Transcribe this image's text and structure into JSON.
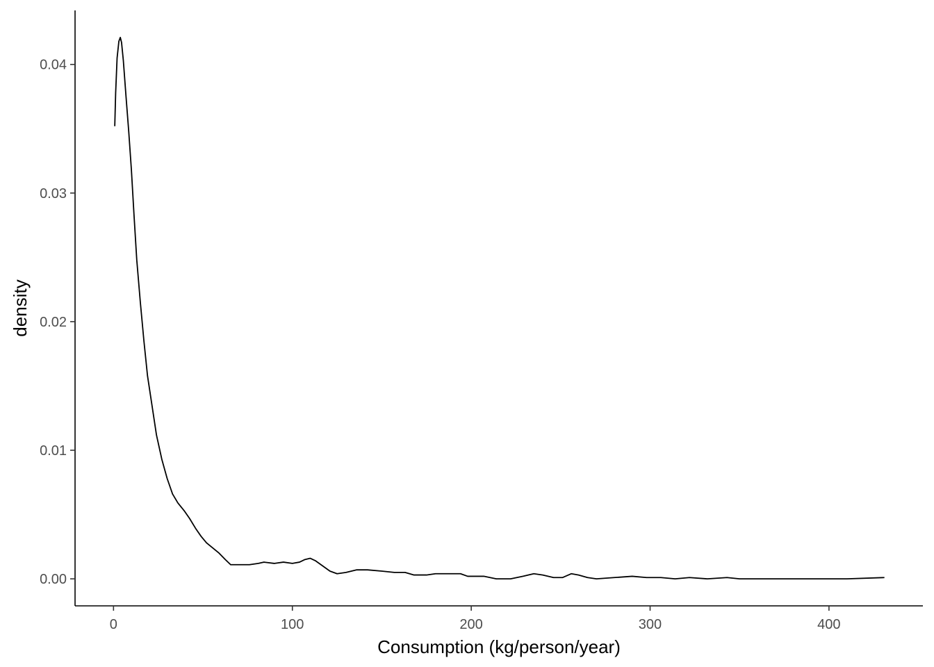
{
  "chart_data": {
    "type": "line",
    "title": "",
    "xlabel": "Consumption (kg/person/year)",
    "ylabel": "density",
    "xlim": [
      -21.5,
      452.5
    ],
    "ylim": [
      -0.0021,
      0.0442
    ],
    "x_ticks": [
      0,
      100,
      200,
      300,
      400
    ],
    "y_ticks": [
      0.0,
      0.01,
      0.02,
      0.03,
      0.04
    ],
    "x_tick_labels": [
      "0",
      "100",
      "200",
      "300",
      "400"
    ],
    "y_tick_labels": [
      "0.00",
      "0.01",
      "0.02",
      "0.03",
      "0.04"
    ],
    "grid": false,
    "legend": "none",
    "line_color": "#000000",
    "series": [
      {
        "values": [
          [
            0.7,
            0.0352
          ],
          [
            1.2,
            0.0378
          ],
          [
            2.0,
            0.0405
          ],
          [
            3.0,
            0.0418
          ],
          [
            3.8,
            0.0421
          ],
          [
            4.5,
            0.0417
          ],
          [
            5.5,
            0.0403
          ],
          [
            7.0,
            0.0375
          ],
          [
            8.5,
            0.0348
          ],
          [
            10.0,
            0.0318
          ],
          [
            11.5,
            0.0282
          ],
          [
            13.0,
            0.0248
          ],
          [
            15.0,
            0.0215
          ],
          [
            17.0,
            0.0185
          ],
          [
            19.0,
            0.0158
          ],
          [
            21.5,
            0.0135
          ],
          [
            24.0,
            0.0112
          ],
          [
            27.0,
            0.0093
          ],
          [
            30.0,
            0.0078
          ],
          [
            33.0,
            0.0066
          ],
          [
            36.0,
            0.0059
          ],
          [
            39.5,
            0.0053
          ],
          [
            42.5,
            0.0047
          ],
          [
            46.0,
            0.0039
          ],
          [
            49.0,
            0.0033
          ],
          [
            52.0,
            0.0028
          ],
          [
            55.5,
            0.0024
          ],
          [
            59.0,
            0.002
          ],
          [
            62.5,
            0.0015
          ],
          [
            65.5,
            0.0011
          ],
          [
            70.0,
            0.0011
          ],
          [
            76.0,
            0.0011
          ],
          [
            81.0,
            0.0012
          ],
          [
            84.0,
            0.0013
          ],
          [
            90.0,
            0.0012
          ],
          [
            95.0,
            0.0013
          ],
          [
            100.0,
            0.0012
          ],
          [
            104.0,
            0.0013
          ],
          [
            107.0,
            0.0015
          ],
          [
            110.0,
            0.0016
          ],
          [
            113.0,
            0.0014
          ],
          [
            117.0,
            0.001
          ],
          [
            121.0,
            0.0006
          ],
          [
            125.0,
            0.0004
          ],
          [
            130.0,
            0.0005
          ],
          [
            136.0,
            0.0007
          ],
          [
            142.0,
            0.0007
          ],
          [
            150.0,
            0.0006
          ],
          [
            157.0,
            0.0005
          ],
          [
            163.0,
            0.0005
          ],
          [
            168.0,
            0.0003
          ],
          [
            175.0,
            0.0003
          ],
          [
            180.0,
            0.0004
          ],
          [
            188.0,
            0.0004
          ],
          [
            194.0,
            0.0004
          ],
          [
            198.0,
            0.0002
          ],
          [
            207.0,
            0.0002
          ],
          [
            214.0,
            0.0
          ],
          [
            222.0,
            0.0
          ],
          [
            229.0,
            0.0002
          ],
          [
            235.0,
            0.0004
          ],
          [
            240.0,
            0.0003
          ],
          [
            246.0,
            0.0001
          ],
          [
            251.0,
            0.0001
          ],
          [
            256.0,
            0.0004
          ],
          [
            260.0,
            0.0003
          ],
          [
            265.0,
            0.0001
          ],
          [
            270.0,
            0.0
          ],
          [
            280.0,
            0.0001
          ],
          [
            290.0,
            0.0002
          ],
          [
            298.0,
            0.0001
          ],
          [
            306.0,
            0.0001
          ],
          [
            314.0,
            0.0
          ],
          [
            322.0,
            0.0001
          ],
          [
            332.0,
            0.0
          ],
          [
            343.0,
            0.0001
          ],
          [
            350.0,
            0.0
          ],
          [
            370.0,
            0.0
          ],
          [
            390.0,
            0.0
          ],
          [
            410.0,
            0.0
          ],
          [
            431.0,
            0.0001
          ]
        ]
      }
    ]
  }
}
